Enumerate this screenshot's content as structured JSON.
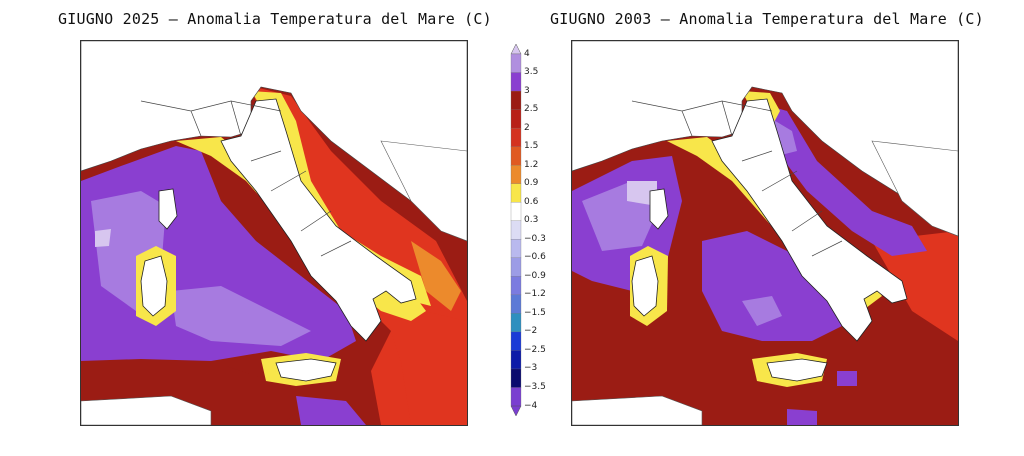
{
  "panels": [
    {
      "title": "GIUGNO 2025 – Anomalia Temperatura del Mare (C)"
    },
    {
      "title": "GIUGNO 2003 – Anomalia Temperatura del Mare (C)"
    }
  ],
  "colorbar": {
    "labels": [
      "4",
      "3.5",
      "3",
      "2.5",
      "2",
      "1.5",
      "1.2",
      "0.9",
      "0.6",
      "0.3",
      "−0.3",
      "−0.6",
      "−0.9",
      "−1.2",
      "−1.5",
      "−2",
      "−2.5",
      "−3",
      "−3.5",
      "−4"
    ],
    "colors": [
      "#d7c6ef",
      "#b08fdf",
      "#8a3fd0",
      "#9b1c14",
      "#b81f17",
      "#d4321f",
      "#e05a22",
      "#ec8a2c",
      "#f8e64a",
      "#ffffff",
      "#dcdcf4",
      "#b9b9ee",
      "#9c9ce6",
      "#7b7be0",
      "#5c7ad6",
      "#2e8fbf",
      "#1a3ad6",
      "#0d1ba8",
      "#0a0a6e",
      "#7a3fd0"
    ]
  },
  "colors": {
    "land": "#ffffff",
    "sea_dark_red": "#9b1c14",
    "sea_red": "#e0351f",
    "sea_orange": "#ec8a2c",
    "sea_yellow": "#f8e64a",
    "sea_purple": "#8a3fd0",
    "sea_light_purple": "#a77be0",
    "sea_lilac": "#d7c6ef"
  }
}
